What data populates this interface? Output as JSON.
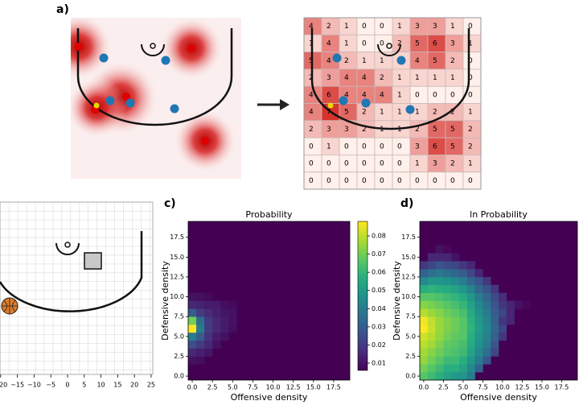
{
  "labels": {
    "a": "a)",
    "c": "c)",
    "d": "d)"
  },
  "grid_a": {
    "rows": [
      [
        4,
        2,
        1,
        0,
        0,
        1,
        3,
        3,
        1,
        0
      ],
      [
        1,
        4,
        1,
        0,
        0,
        2,
        5,
        6,
        3,
        1
      ],
      [
        5,
        4,
        2,
        1,
        1,
        1,
        4,
        5,
        2,
        0
      ],
      [
        2,
        3,
        4,
        4,
        2,
        1,
        1,
        1,
        1,
        0
      ],
      [
        4,
        6,
        4,
        4,
        4,
        1,
        0,
        0,
        0,
        0
      ],
      [
        4,
        7,
        5,
        2,
        1,
        1,
        1,
        2,
        2,
        1
      ],
      [
        2,
        3,
        3,
        2,
        1,
        1,
        2,
        5,
        5,
        2
      ],
      [
        0,
        1,
        0,
        0,
        0,
        0,
        3,
        6,
        5,
        2
      ],
      [
        0,
        0,
        0,
        0,
        0,
        0,
        1,
        3,
        2,
        1
      ],
      [
        0,
        0,
        0,
        0,
        0,
        0,
        0,
        0,
        0,
        0
      ]
    ]
  },
  "court_b": {
    "xlim": [
      -20.2,
      25.5
    ],
    "xticks": [
      {
        "value": -20,
        "label": "−20"
      },
      {
        "value": -15,
        "label": "−15"
      },
      {
        "value": -10,
        "label": "−10"
      },
      {
        "value": -5,
        "label": "−5"
      },
      0,
      5,
      10,
      15,
      20,
      25
    ]
  },
  "chart_data": [
    {
      "type": "heatmap",
      "title": "Probability",
      "xlabel": "Offensive density",
      "ylabel": "Defensive density",
      "xlim": [
        -0.5,
        19.5
      ],
      "ylim": [
        -0.5,
        19.5
      ],
      "xticks": [
        {
          "value": 0,
          "label": "0.0"
        },
        2.5,
        {
          "value": 5,
          "label": "5.0"
        },
        7.5,
        {
          "value": 10,
          "label": "10.0"
        },
        12.5,
        {
          "value": 15,
          "label": "15.0"
        },
        17.5
      ],
      "yticks": [
        {
          "value": 0,
          "label": "0.0"
        },
        2.5,
        {
          "value": 5,
          "label": "5.0"
        },
        7.5,
        {
          "value": 10,
          "label": "10.0"
        },
        12.5,
        {
          "value": 15,
          "label": "15.0"
        },
        17.5
      ],
      "colormap": "viridis",
      "clim": [
        0.006,
        0.088
      ],
      "colorbar": true,
      "cticks": [
        0.01,
        0.02,
        0.03,
        0.04,
        0.05,
        0.06,
        0.07,
        0.08
      ],
      "rows": [
        [],
        [],
        [
          0.01,
          0.009
        ],
        [
          0.015,
          0.013,
          0.011
        ],
        [
          0.025,
          0.02,
          0.015,
          0.01
        ],
        [
          0.04,
          0.03,
          0.018,
          0.012,
          0.01
        ],
        [
          0.088,
          0.04,
          0.02,
          0.015,
          0.012,
          0.009
        ],
        [
          0.07,
          0.035,
          0.02,
          0.015,
          0.012,
          0.01
        ],
        [
          0.03,
          0.02,
          0.016,
          0.013,
          0.011,
          0.01
        ],
        [
          0.015,
          0.014,
          0.012,
          0.012,
          0.009,
          0.008
        ],
        [
          0.01,
          0.009,
          0.008
        ]
      ]
    },
    {
      "type": "heatmap",
      "title": "ln Probability",
      "xlabel": "Offensive density",
      "ylabel": "Defensive density",
      "xlim": [
        -0.5,
        19.5
      ],
      "ylim": [
        -0.5,
        19.5
      ],
      "xticks": [
        {
          "value": 0,
          "label": "0.0"
        },
        2.5,
        {
          "value": 5,
          "label": "5.0"
        },
        7.5,
        {
          "value": 10,
          "label": "10.0"
        },
        12.5,
        {
          "value": 15,
          "label": "15.0"
        },
        17.5
      ],
      "yticks": [
        {
          "value": 0,
          "label": "0.0"
        },
        2.5,
        {
          "value": 5,
          "label": "5.0"
        },
        7.5,
        {
          "value": 10,
          "label": "10.0"
        },
        12.5,
        {
          "value": 15,
          "label": "15.0"
        },
        17.5
      ],
      "colormap": "viridis",
      "clim": [
        -12,
        -2.4
      ],
      "colorbar": false,
      "rows": [
        [
          -5,
          -5.5,
          -6,
          -6.5,
          -7,
          -7,
          -8
        ],
        [
          -4.5,
          -5,
          -5.5,
          -6,
          -6,
          -6.5,
          -7.5,
          -9
        ],
        [
          -4,
          -4.5,
          -5,
          -5.5,
          -5.5,
          -6,
          -7,
          -8,
          -9.5
        ],
        [
          -3.8,
          -4.2,
          -4.6,
          -5,
          -5.2,
          -5.5,
          -6.5,
          -7.5,
          -8.5,
          -10
        ],
        [
          -3.4,
          -3.8,
          -4.3,
          -4.8,
          -5,
          -5.3,
          -6.2,
          -7.2,
          -8,
          -9.5
        ],
        [
          -3.1,
          -3.5,
          -4,
          -4.5,
          -4.8,
          -5,
          -6,
          -7,
          -7.8,
          -9,
          -10.5
        ],
        [
          -2.4,
          -3.2,
          -3.9,
          -4.3,
          -4.6,
          -5,
          -5.8,
          -6.8,
          -7.6,
          -8.8,
          -10
        ],
        [
          -2.6,
          -3.3,
          -3.9,
          -4.3,
          -4.6,
          -5,
          -5.9,
          -6.9,
          -7.7,
          -9,
          -10.5,
          -11
        ],
        [
          -3.5,
          -3.9,
          -4.2,
          -4.6,
          -4.9,
          -5.3,
          -6.2,
          -7.2,
          -8,
          -9.2,
          -10,
          -11
        ],
        [
          -4.2,
          -4.4,
          -4.7,
          -5,
          -5.3,
          -5.7,
          -6.6,
          -7.5,
          -8.4,
          -9.5,
          -10.5,
          -11,
          -11.5,
          -11.8
        ],
        [
          -5,
          -5,
          -5.2,
          -5.5,
          -5.8,
          -6.2,
          -7,
          -8,
          -8.8,
          -9.8,
          -10.8
        ],
        [
          -6,
          -5.8,
          -6,
          -6.2,
          -6.5,
          -7,
          -7.8,
          -8.8,
          -9.5,
          -10.5
        ],
        [
          -7.5,
          -7,
          -7,
          -7.2,
          -7.5,
          -8,
          -8.8,
          -9.5,
          -10.5
        ],
        [
          -9,
          -8.5,
          -8.2,
          -8.5,
          -8.8,
          -9.2,
          -10,
          -11
        ],
        [
          -10.5,
          -10,
          -9.5,
          -9.8,
          -10,
          -10.5,
          -11
        ],
        [
          null,
          -11,
          -11,
          -11,
          -11.5
        ],
        [
          null,
          null,
          -11.5,
          -11.8
        ]
      ]
    }
  ]
}
